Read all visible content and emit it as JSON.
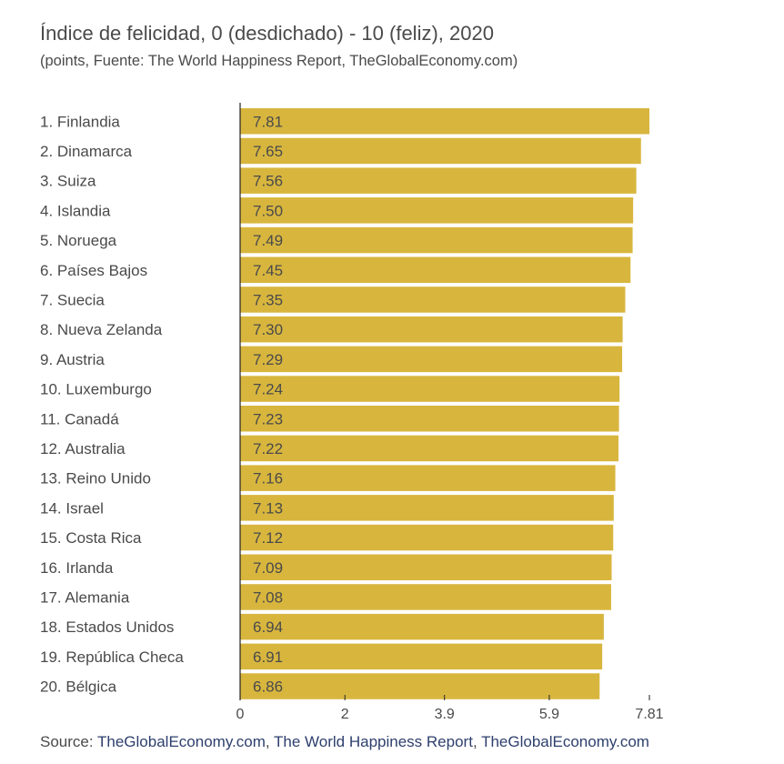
{
  "title": "Índice de felicidad, 0 (desdichado) - 10 (feliz), 2020",
  "subtitle": "(points, Fuente: The World Happiness Report, TheGlobalEconomy.com)",
  "source": {
    "label": "Source:",
    "links": [
      "TheGlobalEconomy.com",
      "The World Happiness Report",
      "TheGlobalEconomy.com"
    ],
    "separator": ", "
  },
  "colors": {
    "bar": "#d8b63e",
    "text": "#4a4a4a",
    "axis": "#222222",
    "link": "#2e3f6e"
  },
  "chart_data": {
    "type": "bar",
    "orientation": "horizontal",
    "categories": [
      "1. Finlandia",
      "2. Dinamarca",
      "3. Suiza",
      "4. Islandia",
      "5. Noruega",
      "6. Países Bajos",
      "7. Suecia",
      "8. Nueva Zelanda",
      "9. Austria",
      "10. Luxemburgo",
      "11. Canadá",
      "12. Australia",
      "13. Reino Unido",
      "14. Israel",
      "15. Costa Rica",
      "16. Irlanda",
      "17. Alemania",
      "18. Estados Unidos",
      "19. República Checa",
      "20. Bélgica"
    ],
    "values": [
      7.81,
      7.65,
      7.56,
      7.5,
      7.49,
      7.45,
      7.35,
      7.3,
      7.29,
      7.24,
      7.23,
      7.22,
      7.16,
      7.13,
      7.12,
      7.09,
      7.08,
      6.94,
      6.91,
      6.86
    ],
    "value_labels": [
      "7.81",
      "7.65",
      "7.56",
      "7.50",
      "7.49",
      "7.45",
      "7.35",
      "7.30",
      "7.29",
      "7.24",
      "7.23",
      "7.22",
      "7.16",
      "7.13",
      "7.12",
      "7.09",
      "7.08",
      "6.94",
      "6.91",
      "6.86"
    ],
    "xticks": [
      0,
      2,
      3.9,
      5.9,
      7.81
    ],
    "xtick_labels": [
      "0",
      "2",
      "3.9",
      "5.9",
      "7.81"
    ],
    "xlim": [
      0,
      7.81
    ],
    "grid": false,
    "legend": "none"
  }
}
